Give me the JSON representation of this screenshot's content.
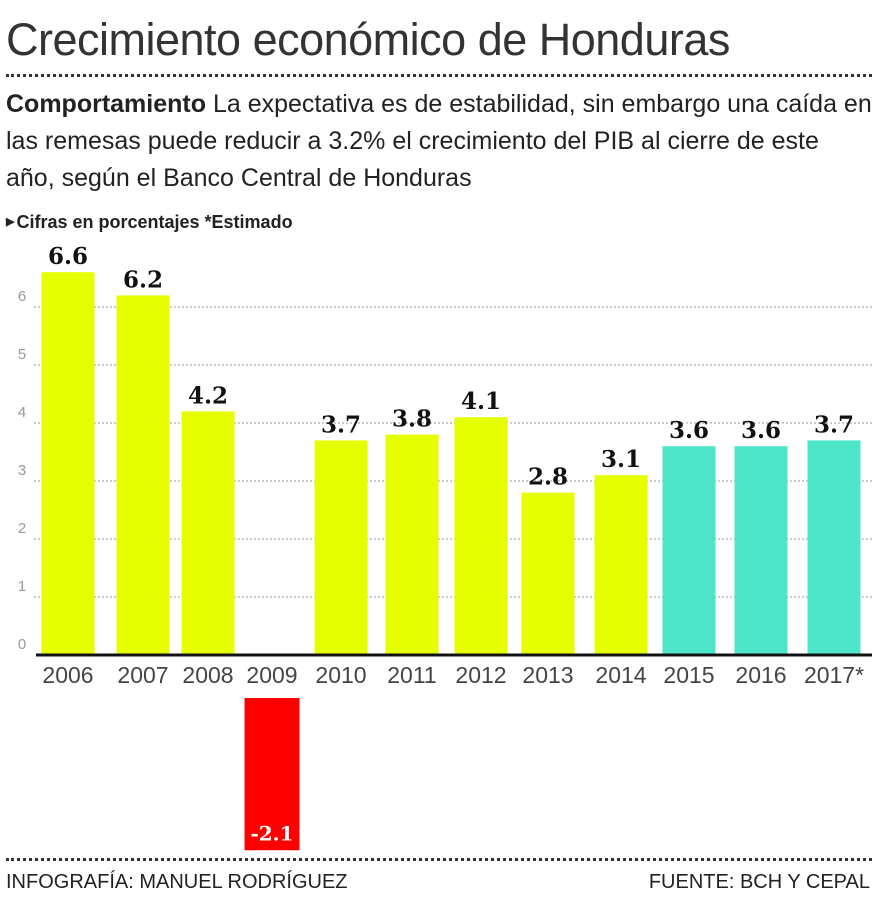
{
  "title": "Crecimiento económico de Honduras",
  "subtitle": {
    "lead": "Comportamiento",
    "text": "La expectativa es de estabilidad, sin embargo una caída en las remesas puede reducir a 3.2% el crecimiento del PIB al cierre de este año, según el Banco Central de Honduras"
  },
  "note": "Cifras en porcentajes *Estimado",
  "footer": {
    "credit": "INFOGRAFÍA: MANUEL RODRÍGUEZ",
    "source": "FUENTE: BCH Y CEPAL"
  },
  "chart_data": {
    "type": "bar",
    "categories": [
      "2006",
      "2007",
      "2008",
      "2009",
      "2010",
      "2011",
      "2012",
      "2013",
      "2014",
      "2015",
      "2016",
      "2017*"
    ],
    "values": [
      6.6,
      6.2,
      4.2,
      -2.1,
      3.7,
      3.8,
      4.1,
      2.8,
      3.1,
      3.6,
      3.6,
      3.7
    ],
    "data_labels": [
      "6.6",
      "6.2",
      "4.2",
      "-2.1",
      "3.7",
      "3.8",
      "4.1",
      "2.8",
      "3.1",
      "3.6",
      "3.6",
      "3.7"
    ],
    "y_ticks": [
      "0",
      "1",
      "2",
      "3",
      "4",
      "5",
      "6"
    ],
    "ylim": [
      0,
      7
    ],
    "grid": true,
    "colors": {
      "historical": "#e6ff00",
      "estimated": "#4de6c8",
      "negative": "#ff0000"
    },
    "estimated_from": "2015"
  }
}
